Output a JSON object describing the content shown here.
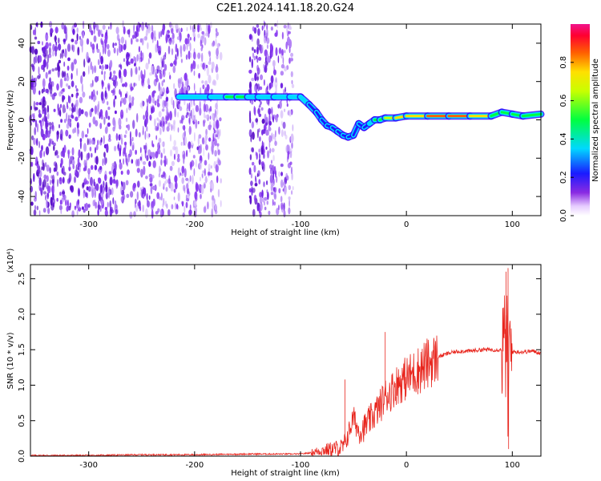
{
  "title": "C2E1.2024.141.18.20.G24",
  "chart_data": [
    {
      "type": "heatmap",
      "xlabel": "Height of straight line (km)",
      "ylabel": "Frequency (Hz)",
      "xlim": [
        -355,
        127
      ],
      "ylim": [
        -50,
        50
      ],
      "x_ticks": [
        -300,
        -200,
        -100,
        0,
        100
      ],
      "x_tick_labels": [
        "-300",
        "-200",
        "-100",
        "0",
        "100"
      ],
      "y_ticks": [
        -40,
        -20,
        0,
        20,
        40
      ],
      "y_tick_labels": [
        "-40",
        "-20",
        "0",
        "20",
        "40"
      ],
      "colorbar": {
        "label": "Normalized spectral amplitude",
        "range": [
          0,
          1
        ],
        "ticks": [
          0.0,
          0.2,
          0.4,
          0.6,
          0.8
        ],
        "tick_labels": [
          "0.0",
          "0.2",
          "0.4",
          "0.6",
          "0.8"
        ],
        "colormap": "rainbow"
      },
      "noise_regions": [
        [
          -355,
          -175
        ],
        [
          -148,
          -107
        ]
      ],
      "ridge": {
        "x": [
          -215,
          -185,
          -170,
          -160,
          -150,
          -140,
          -125,
          -110,
          -100,
          -92,
          -85,
          -80,
          -75,
          -70,
          -65,
          -60,
          -55,
          -50,
          -45,
          -40,
          -35,
          -30,
          -25,
          -20,
          -10,
          0,
          20,
          40,
          60,
          80,
          90,
          100,
          110,
          127
        ],
        "freq": [
          12,
          12,
          12,
          12,
          12,
          12,
          12,
          12,
          12,
          8,
          4,
          0,
          -3,
          -4,
          -6,
          -8,
          -9,
          -8,
          -2,
          -4,
          -2,
          0,
          0,
          1,
          1,
          2,
          2,
          2,
          2,
          2,
          4,
          3,
          2,
          3
        ],
        "amplitude": [
          0.35,
          0.45,
          0.5,
          0.6,
          0.55,
          0.5,
          0.55,
          0.5,
          0.5,
          0.35,
          0.25,
          0.3,
          0.25,
          0.3,
          0.3,
          0.25,
          0.25,
          0.25,
          0.25,
          0.35,
          0.4,
          0.55,
          0.6,
          0.7,
          0.8,
          0.85,
          0.9,
          0.95,
          0.9,
          0.7,
          0.5,
          0.6,
          0.75,
          0.5
        ]
      },
      "grid": false
    },
    {
      "type": "line",
      "xlabel": "Height of straight line (km)",
      "ylabel": "SNR (10 * v/v)",
      "y_multiplier_label": "(x10⁴)",
      "xlim": [
        -355,
        127
      ],
      "ylim": [
        0,
        2.7
      ],
      "x_ticks": [
        -300,
        -200,
        -100,
        0,
        100
      ],
      "x_tick_labels": [
        "-300",
        "-200",
        "-100",
        "0",
        "100"
      ],
      "y_ticks": [
        0.0,
        0.5,
        1.0,
        1.5,
        2.0,
        2.5
      ],
      "y_tick_labels": [
        "0.0",
        "0.5",
        "1.0",
        "1.5",
        "2.0",
        "2.5"
      ],
      "series": [
        {
          "color": "#e8261e",
          "x": [
            -355,
            -300,
            -250,
            -200,
            -150,
            -120,
            -100,
            -90,
            -80,
            -70,
            -60,
            -55,
            -50,
            -45,
            -40,
            -35,
            -30,
            -25,
            -20,
            -15,
            -10,
            -5,
            0,
            10,
            20,
            30,
            40,
            50,
            60,
            70,
            80,
            90,
            93,
            95,
            96,
            97,
            98,
            100,
            110,
            120,
            127
          ],
          "y": [
            0.01,
            0.01,
            0.02,
            0.02,
            0.03,
            0.03,
            0.03,
            0.05,
            0.08,
            0.1,
            0.12,
            0.3,
            0.55,
            0.35,
            0.4,
            0.5,
            0.6,
            0.7,
            0.85,
            0.9,
            1.0,
            1.05,
            1.1,
            1.2,
            1.3,
            1.4,
            1.45,
            1.48,
            1.48,
            1.5,
            1.5,
            1.5,
            1.55,
            1.6,
            0.6,
            1.5,
            1.45,
            1.47,
            1.47,
            1.48,
            1.45
          ],
          "spikes": [
            {
              "x": -58,
              "y": 1.08
            },
            {
              "x": -20,
              "y": 1.75
            },
            {
              "x": 94,
              "y": 2.6
            },
            {
              "x": 96,
              "y": 2.65
            },
            {
              "x": 96.5,
              "y": 0.1
            }
          ]
        }
      ],
      "grid": false
    }
  ]
}
